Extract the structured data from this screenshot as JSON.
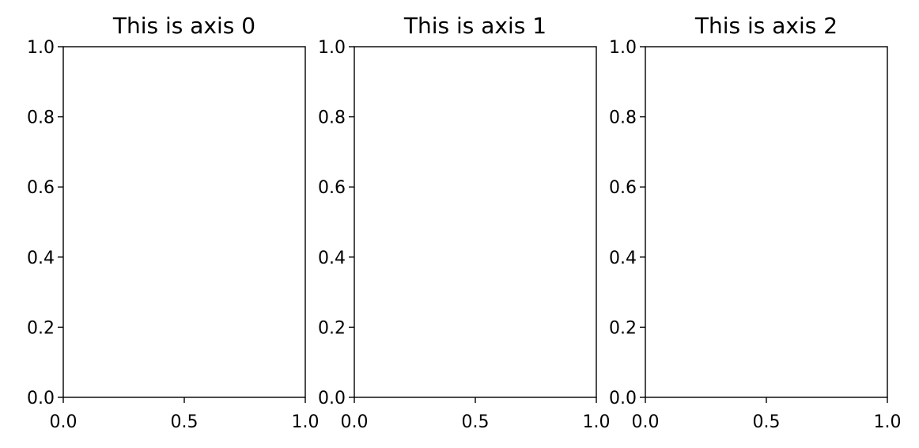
{
  "chart_data": [
    {
      "type": "scatter",
      "title": "This is axis 0",
      "xlabel": "",
      "ylabel": "",
      "xlim": [
        0.0,
        1.0
      ],
      "ylim": [
        0.0,
        1.0
      ],
      "xticks": [
        0.0,
        0.5,
        1.0
      ],
      "xtick_labels": [
        "0.0",
        "0.5",
        "1.0"
      ],
      "yticks": [
        0.0,
        0.2,
        0.4,
        0.6,
        0.8,
        1.0
      ],
      "ytick_labels": [
        "0.0",
        "0.2",
        "0.4",
        "0.6",
        "0.8",
        "1.0"
      ],
      "series": [],
      "grid": false,
      "legend": "none"
    },
    {
      "type": "scatter",
      "title": "This is axis 1",
      "xlabel": "",
      "ylabel": "",
      "xlim": [
        0.0,
        1.0
      ],
      "ylim": [
        0.0,
        1.0
      ],
      "xticks": [
        0.0,
        0.5,
        1.0
      ],
      "xtick_labels": [
        "0.0",
        "0.5",
        "1.0"
      ],
      "yticks": [
        0.0,
        0.2,
        0.4,
        0.6,
        0.8,
        1.0
      ],
      "ytick_labels": [
        "0.0",
        "0.2",
        "0.4",
        "0.6",
        "0.8",
        "1.0"
      ],
      "series": [],
      "grid": false,
      "legend": "none"
    },
    {
      "type": "scatter",
      "title": "This is axis 2",
      "xlabel": "",
      "ylabel": "",
      "xlim": [
        0.0,
        1.0
      ],
      "ylim": [
        0.0,
        1.0
      ],
      "xticks": [
        0.0,
        0.5,
        1.0
      ],
      "xtick_labels": [
        "0.0",
        "0.5",
        "1.0"
      ],
      "yticks": [
        0.0,
        0.2,
        0.4,
        0.6,
        0.8,
        1.0
      ],
      "ytick_labels": [
        "0.0",
        "0.2",
        "0.4",
        "0.6",
        "0.8",
        "1.0"
      ],
      "series": [],
      "grid": false,
      "legend": "none"
    }
  ]
}
